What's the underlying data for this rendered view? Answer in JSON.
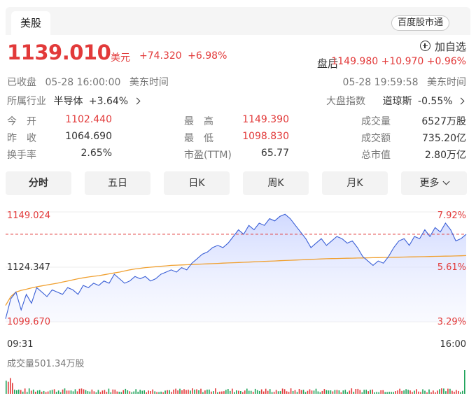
{
  "tab": {
    "label": "美股"
  },
  "source": {
    "label": "百度股市通"
  },
  "quote": {
    "price": "1139.010",
    "unit": "美元",
    "change": "+74.320",
    "change_pct": "+6.98%",
    "add_watchlist": "加自选",
    "status": "已收盘",
    "close_time": "05-28 16:00:00",
    "tz": "美东时间"
  },
  "after_hours": {
    "label": "盘后",
    "price": "1149.980",
    "change": "+10.970",
    "change_pct": "+0.96%",
    "time": "05-28 19:59:58",
    "tz": "美东时间"
  },
  "industry": {
    "label": "所属行业",
    "name": "半导体",
    "change": "+3.64%"
  },
  "index": {
    "label": "大盘指数",
    "name": "道琼斯",
    "change": "-0.55%"
  },
  "stats": {
    "open": {
      "label": "今　开",
      "value": "1102.440"
    },
    "prev": {
      "label": "昨　收",
      "value": "1064.690"
    },
    "turnover": {
      "label": "换手率",
      "value": "2.65%"
    },
    "high": {
      "label": "最　高",
      "value": "1149.390"
    },
    "low": {
      "label": "最　低",
      "value": "1098.830"
    },
    "pe": {
      "label": "市盈(TTM)",
      "value": "65.77"
    },
    "volume": {
      "label": "成交量",
      "value": "6527万股"
    },
    "amount": {
      "label": "成交额",
      "value": "735.20亿"
    },
    "mktcap": {
      "label": "总市值",
      "value": "2.80万亿"
    }
  },
  "ranges": [
    {
      "label": "分时"
    },
    {
      "label": "五日"
    },
    {
      "label": "日K"
    },
    {
      "label": "周K"
    },
    {
      "label": "月K"
    },
    {
      "label": "更多"
    }
  ],
  "colors": {
    "up": "#e23a3a",
    "down": "#1fa35a",
    "price_line": "#3a5fd6",
    "avg_line": "#f0a030"
  },
  "chart_data": {
    "type": "line",
    "y_left_ticks": [
      "1149.024",
      "1124.347",
      "1099.670"
    ],
    "y_right_ticks": [
      "7.92%",
      "5.61%",
      "3.29%"
    ],
    "x_ticks": [
      "09:31",
      "16:00"
    ],
    "ylim": [
      1099.67,
      1149.024
    ],
    "reference_price": 1139.01,
    "volume_label": "成交量501.34万股",
    "series": [
      {
        "values": [
          1101,
          1110,
          1113,
          1105,
          1112,
          1108,
          1115,
          1113,
          1111,
          1114,
          1113,
          1112,
          1115,
          1114,
          1112,
          1116,
          1115,
          1117,
          1116,
          1118,
          1117,
          1121,
          1119,
          1117,
          1118,
          1120,
          1119,
          1120,
          1118,
          1119,
          1121,
          1122,
          1123,
          1122,
          1124,
          1123,
          1126,
          1128,
          1130,
          1131,
          1133,
          1134,
          1133,
          1135,
          1138,
          1141,
          1139,
          1143,
          1141,
          1144,
          1143,
          1146,
          1145,
          1147,
          1148,
          1146,
          1143,
          1140,
          1137,
          1133,
          1135,
          1137,
          1134,
          1136,
          1138,
          1137,
          1135,
          1136,
          1133,
          1129,
          1127,
          1125,
          1127,
          1126,
          1129,
          1133,
          1136,
          1137,
          1134,
          1138,
          1137,
          1141,
          1138,
          1142,
          1140,
          1144,
          1141,
          1136,
          1137,
          1139
        ]
      },
      {
        "values": [
          1107,
          1111,
          1113,
          1113.8,
          1114.3,
          1114.9,
          1115.4,
          1115.8,
          1116.2,
          1116.6,
          1117,
          1117.5,
          1118,
          1118.5,
          1119,
          1119.4,
          1119.8,
          1120.1,
          1120.4,
          1120.8,
          1121.2,
          1121.6,
          1122,
          1122.5,
          1123,
          1123.4,
          1123.7,
          1124,
          1124.2,
          1124.4,
          1124.6,
          1124.8,
          1125,
          1125.1,
          1125.2,
          1125.3,
          1125.4,
          1125.5,
          1125.6,
          1125.7,
          1125.8,
          1125.9,
          1126,
          1126.1,
          1126.2,
          1126.3,
          1126.4,
          1126.5,
          1126.6,
          1126.7,
          1126.8,
          1126.9,
          1127,
          1127.1,
          1127.2,
          1127.3,
          1127.4,
          1127.5,
          1127.6,
          1127.7,
          1127.8,
          1127.9,
          1128,
          1128.05,
          1128.1,
          1128.15,
          1128.2,
          1128.25,
          1128.3,
          1128.35,
          1128.4,
          1128.45,
          1128.5,
          1128.55,
          1128.6,
          1128.65,
          1128.7,
          1128.75,
          1128.8,
          1128.85,
          1128.9,
          1128.95,
          1129,
          1129.05,
          1129.1,
          1129.15,
          1129.2,
          1129.25,
          1129.3,
          1129.4
        ]
      }
    ]
  }
}
